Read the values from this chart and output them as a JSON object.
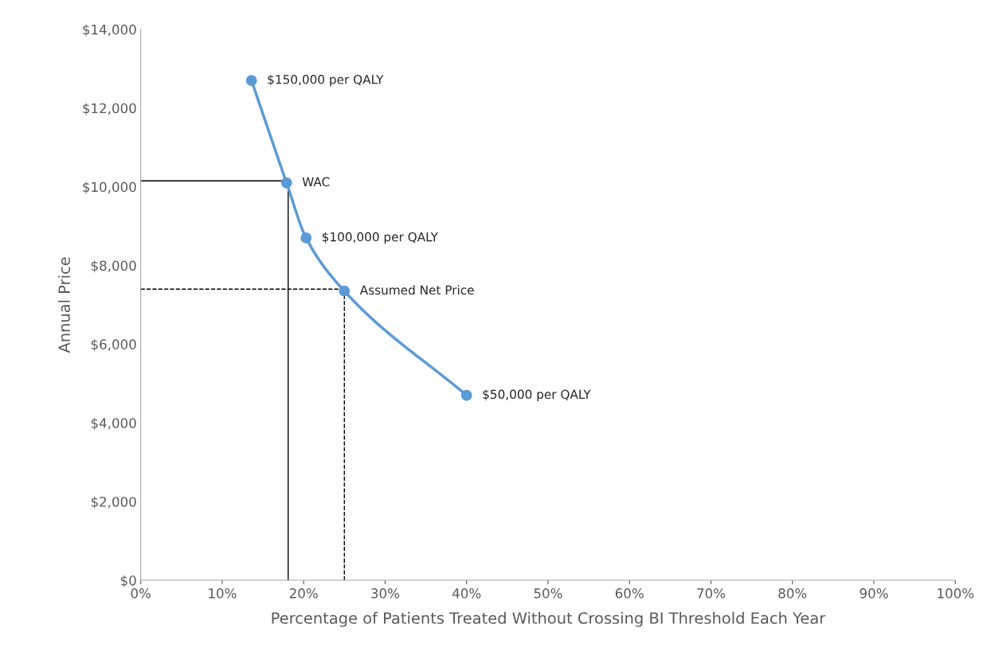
{
  "chart_data": {
    "type": "line",
    "xlabel": "Percentage of Patients Treated Without Crossing BI Threshold Each Year",
    "ylabel": "Annual Price",
    "series": [
      {
        "color": "#5b9bd5",
        "x": [
          13.6,
          17.9,
          20.3,
          25.0,
          40.0
        ],
        "values": [
          12700,
          10100,
          8700,
          7350,
          4700
        ]
      }
    ],
    "marker": "circle",
    "line_style": "solid",
    "grid": false,
    "legend": false,
    "xlim": [
      0,
      100
    ],
    "xticks": [
      {
        "value": 0,
        "label": "0%"
      },
      {
        "value": 10,
        "label": "10%"
      },
      {
        "value": 20,
        "label": "20%"
      },
      {
        "value": 30,
        "label": "30%"
      },
      {
        "value": 40,
        "label": "40%"
      },
      {
        "value": 50,
        "label": "50%"
      },
      {
        "value": 60,
        "label": "60%"
      },
      {
        "value": 70,
        "label": "70%"
      },
      {
        "value": 80,
        "label": "80%"
      },
      {
        "value": 90,
        "label": "90%"
      },
      {
        "value": 100,
        "label": "100%"
      }
    ],
    "ylim": [
      0,
      14000
    ],
    "yticks": [
      {
        "value": 0,
        "label": "$0"
      },
      {
        "value": 2000,
        "label": "$2,000"
      },
      {
        "value": 4000,
        "label": "$4,000"
      },
      {
        "value": 6000,
        "label": "$6,000"
      },
      {
        "value": 8000,
        "label": "$8,000"
      },
      {
        "value": 10000,
        "label": "$10,000"
      },
      {
        "value": 12000,
        "label": "$12,000"
      },
      {
        "value": 14000,
        "label": "$14,000"
      }
    ],
    "ref_lines": [
      {
        "axis": "x",
        "value": 18.1,
        "color": "#000000",
        "line_style": "solid"
      },
      {
        "axis": "y",
        "value": 10150,
        "color": "#000000",
        "line_style": "solid"
      },
      {
        "axis": "x",
        "value": 25.0,
        "color": "#000000",
        "line_style": "dashed"
      },
      {
        "axis": "y",
        "value": 7400,
        "color": "#000000",
        "line_style": "dashed"
      }
    ],
    "annotations": [
      {
        "text": "$150,000 per QALY",
        "x": 13.6,
        "y": 12700
      },
      {
        "text": "WAC",
        "x": 17.9,
        "y": 10100
      },
      {
        "text": "$100,000 per QALY",
        "x": 20.3,
        "y": 8700
      },
      {
        "text": "Assumed Net Price",
        "x": 25.0,
        "y": 7350
      },
      {
        "text": "$50,000 per QALY",
        "x": 40.0,
        "y": 4700
      }
    ]
  }
}
